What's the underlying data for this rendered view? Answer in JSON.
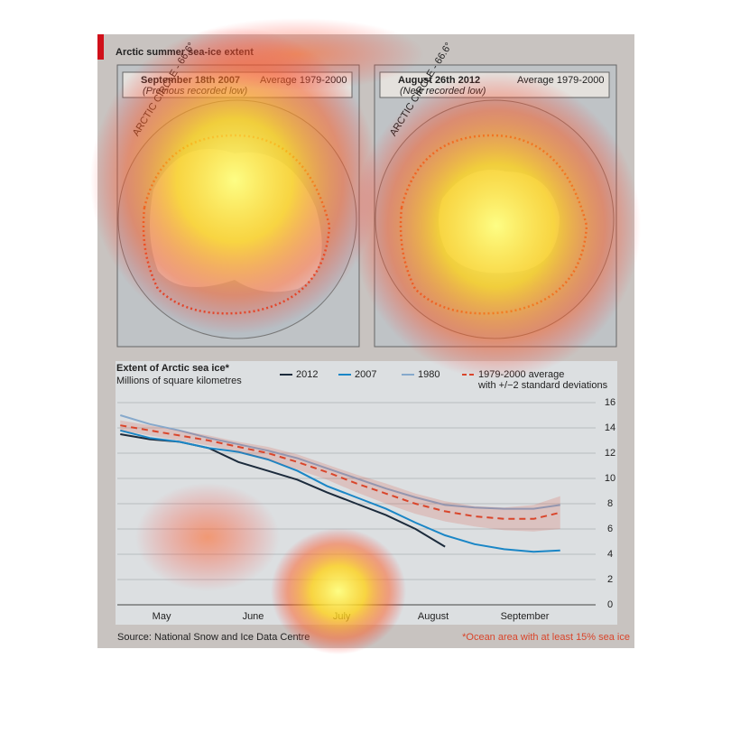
{
  "header": {
    "title": "Arctic summer sea-ice extent"
  },
  "maps": [
    {
      "date": "September 18th 2007",
      "note": "(Previous recorded low)",
      "average": "Average 1979-2000",
      "circle": "ARCTIC CIRCLE - 66.6°"
    },
    {
      "date": "August 26th 2012",
      "note": "(New recorded low)",
      "average": "Average 1979-2000",
      "circle": "ARCTIC CIRCLE - 66.6°"
    }
  ],
  "chart_data": {
    "type": "line",
    "title": "Extent of Arctic sea ice*",
    "subtitle": "Millions of square kilometres",
    "x": [
      1,
      11,
      21,
      31,
      41,
      51,
      61,
      71,
      81,
      91,
      101,
      111,
      121,
      131,
      141,
      150
    ],
    "xlim": [
      0,
      162
    ],
    "xticks": [
      {
        "value": 15,
        "label": "May"
      },
      {
        "value": 46,
        "label": "June"
      },
      {
        "value": 76,
        "label": "July"
      },
      {
        "value": 107,
        "label": "August"
      },
      {
        "value": 138,
        "label": "September"
      }
    ],
    "ylim": [
      0,
      16
    ],
    "yticks": [
      0,
      2,
      4,
      6,
      8,
      10,
      12,
      14,
      16
    ],
    "grid": true,
    "series": [
      {
        "name": "2012",
        "color": "#1c2b3c",
        "values": [
          13.5,
          13.1,
          12.9,
          12.4,
          11.3,
          10.6,
          9.9,
          8.9,
          8.0,
          7.1,
          6.0,
          4.6,
          null,
          null,
          null,
          null
        ]
      },
      {
        "name": "2007",
        "color": "#1a86c6",
        "values": [
          13.8,
          13.2,
          12.9,
          12.4,
          12.1,
          11.5,
          10.6,
          9.4,
          8.5,
          7.6,
          6.5,
          5.5,
          4.8,
          4.4,
          4.2,
          4.3
        ]
      },
      {
        "name": "1980",
        "color": "#86a9cc",
        "values": [
          15.0,
          14.3,
          13.8,
          13.2,
          12.7,
          12.2,
          11.6,
          10.8,
          10.0,
          9.2,
          8.5,
          7.9,
          7.7,
          7.6,
          7.6,
          7.9
        ]
      },
      {
        "name": "1979-2000 average",
        "note": "with +/−2 standard deviations",
        "color": "#d9452b",
        "dashed": true,
        "values": [
          14.2,
          13.8,
          13.4,
          13.0,
          12.5,
          12.0,
          11.3,
          10.5,
          9.6,
          8.8,
          8.0,
          7.4,
          7.0,
          6.8,
          6.8,
          7.3
        ],
        "upper": [
          14.6,
          14.2,
          13.8,
          13.4,
          12.9,
          12.5,
          11.9,
          11.1,
          10.3,
          9.6,
          8.8,
          8.2,
          7.8,
          7.7,
          7.9,
          8.6
        ],
        "lower": [
          13.8,
          13.4,
          13.0,
          12.6,
          12.1,
          11.5,
          10.7,
          9.9,
          8.9,
          8.0,
          7.2,
          6.6,
          6.2,
          5.9,
          5.8,
          6.0
        ]
      }
    ],
    "source": "Source: National Snow and Ice Data Centre",
    "footnote": "*Ocean area with at least 15% sea ice"
  }
}
